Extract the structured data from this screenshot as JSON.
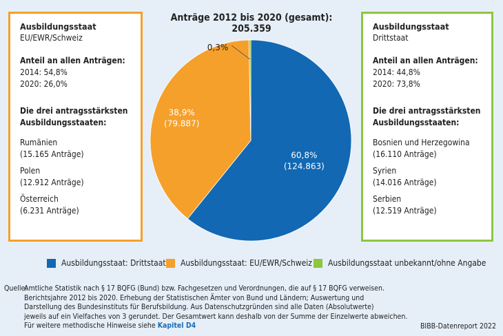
{
  "chart_data": {
    "type": "pie",
    "title_line1": "Anträge 2012 bis 2020 (gesamt):",
    "title_line2": "205.359",
    "slices": [
      {
        "label": "Ausbildungsstaat: Drittstaat",
        "percent_label": "60,8%",
        "count_label": "(124.863)",
        "value": 124863,
        "color": "#1268b3"
      },
      {
        "label": "Ausbildungsstaat: EU/EWR/Schweiz",
        "percent_label": "38,9%",
        "count_label": "(79.887)",
        "value": 79887,
        "color": "#f5a02a"
      },
      {
        "label": "Ausbildungsstaat unbekannt/ohne Angabe",
        "percent_label": "0,3%",
        "count_label": "",
        "value": 616,
        "color": "#8dc63f"
      }
    ]
  },
  "left_box": {
    "title": "Ausbildungsstaat",
    "subtitle": "EU/EWR/Schweiz",
    "share_heading": "Anteil an allen Anträgen:",
    "share_2014": "2014: 54,8%",
    "share_2020": "2020: 26,0%",
    "top_heading_1": "Die drei antragsstärksten",
    "top_heading_2": "Ausbildungsstaaten:",
    "countries": [
      {
        "name": "Rumänien",
        "count": "(15.165 Anträge)"
      },
      {
        "name": "Polen",
        "count": "(12.912 Anträge)"
      },
      {
        "name": "Österreich",
        "count": "(6.231 Anträge)"
      }
    ]
  },
  "right_box": {
    "title": "Ausbildungsstaat",
    "subtitle": "Drittstaat",
    "share_heading": "Anteil an allen Anträgen:",
    "share_2014": "2014: 44,8%",
    "share_2020": "2020: 73,8%",
    "top_heading_1": "Die drei antragsstärksten",
    "top_heading_2": "Ausbildungsstaaten:",
    "countries": [
      {
        "name": "Bosnien und Herzegowina",
        "count": "(16.110 Anträge)"
      },
      {
        "name": "Syrien",
        "count": "(14.016 Anträge)"
      },
      {
        "name": "Serbien",
        "count": "(12.519 Anträge)"
      }
    ]
  },
  "source": {
    "label": "Quelle:",
    "lines": [
      "Amtliche Statistik nach § 17 BQFG (Bund) bzw. Fachgesetzen und Verordnungen, die auf § 17 BQFG verweisen.",
      "Berichtsjahre 2012 bis 2020. Erhebung der Statistischen Ämter von Bund und Ländern; Auswertung und",
      "Darstellung des Bundesinstituts für Berufsbildung. Aus Datenschutzgründen sind alle Daten (Absolutwerte)",
      "jeweils auf ein Vielfaches von 3 gerundet. Der Gesamtwert kann deshalb von der Summe der Einzelwerte abweichen."
    ],
    "last_line_prefix": "Für weitere methodische Hinweise siehe ",
    "link_text": "Kapitel D4"
  },
  "credit": "BIBB-Datenreport 2022"
}
